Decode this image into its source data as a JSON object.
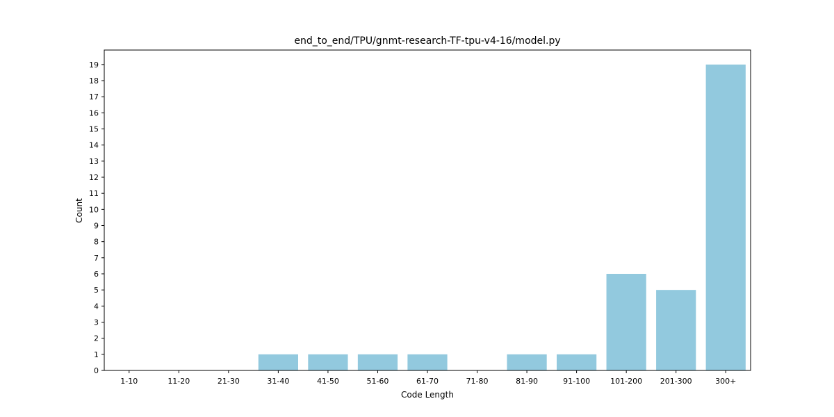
{
  "chart_data": {
    "type": "bar",
    "title": "end_to_end/TPU/gnmt-research-TF-tpu-v4-16/model.py",
    "xlabel": "Code Length",
    "ylabel": "Count",
    "categories": [
      "1-10",
      "11-20",
      "21-30",
      "31-40",
      "41-50",
      "51-60",
      "61-70",
      "71-80",
      "81-90",
      "91-100",
      "101-200",
      "201-300",
      "300+"
    ],
    "values": [
      0,
      0,
      0,
      1,
      1,
      1,
      1,
      0,
      1,
      1,
      6,
      5,
      19
    ],
    "ylim": [
      0,
      19.9
    ],
    "yticks": [
      0,
      1,
      2,
      3,
      4,
      5,
      6,
      7,
      8,
      9,
      10,
      11,
      12,
      13,
      14,
      15,
      16,
      17,
      18,
      19
    ],
    "bar_color": "#92c9de",
    "grid": false
  }
}
